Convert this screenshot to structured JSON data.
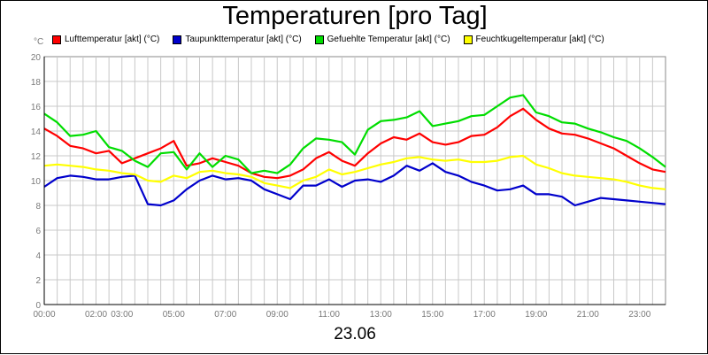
{
  "chart_data": {
    "type": "line",
    "title": "Temperaturen [pro Tag]",
    "y_unit": "°C",
    "xlabel": "23.06",
    "ylim": [
      0,
      20
    ],
    "y_ticks": [
      0,
      2,
      4,
      6,
      8,
      10,
      12,
      14,
      16,
      18,
      20
    ],
    "x_ticks": [
      {
        "t": 0,
        "label": "00:00"
      },
      {
        "t": 2,
        "label": "02:00"
      },
      {
        "t": 3,
        "label": "03:00"
      },
      {
        "t": 5,
        "label": "05:00"
      },
      {
        "t": 7,
        "label": "07:00"
      },
      {
        "t": 9,
        "label": "09:00"
      },
      {
        "t": 11,
        "label": "11:00"
      },
      {
        "t": 13,
        "label": "13:00"
      },
      {
        "t": 15,
        "label": "15:00"
      },
      {
        "t": 17,
        "label": "17:00"
      },
      {
        "t": 19,
        "label": "19:00"
      },
      {
        "t": 21,
        "label": "21:00"
      },
      {
        "t": 23,
        "label": "23:00"
      }
    ],
    "x_range": [
      0,
      24
    ],
    "x_unit": "hour",
    "grid": true,
    "legend_position": "top",
    "x": [
      0,
      0.5,
      1,
      1.5,
      2,
      2.5,
      3,
      3.5,
      4,
      4.5,
      5,
      5.5,
      6,
      6.5,
      7,
      7.5,
      8,
      8.5,
      9,
      9.5,
      10,
      10.5,
      11,
      11.5,
      12,
      12.5,
      13,
      13.5,
      14,
      14.5,
      15,
      15.5,
      16,
      16.5,
      17,
      17.5,
      18,
      18.5,
      19,
      19.5,
      20,
      20.5,
      21,
      21.5,
      22,
      22.5,
      23,
      23.5,
      24
    ],
    "series": [
      {
        "name": "Lufttemperatur [akt] (°C)",
        "color": "#ff0000",
        "values": [
          14.2,
          13.6,
          12.8,
          12.6,
          12.2,
          12.4,
          11.4,
          11.8,
          12.2,
          12.6,
          13.2,
          11.2,
          11.4,
          11.8,
          11.5,
          11.2,
          10.6,
          10.3,
          10.2,
          10.4,
          10.9,
          11.8,
          12.3,
          11.6,
          11.2,
          12.2,
          13.0,
          13.5,
          13.3,
          13.8,
          13.1,
          12.9,
          13.1,
          13.6,
          13.7,
          14.3,
          15.2,
          15.8,
          14.9,
          14.2,
          13.8,
          13.7,
          13.4,
          13.0,
          12.6,
          12.0,
          11.4,
          10.9,
          10.7
        ]
      },
      {
        "name": "Taupunkttemperatur [akt] (°C)",
        "color": "#0000cc",
        "values": [
          9.5,
          10.2,
          10.4,
          10.3,
          10.1,
          10.1,
          10.3,
          10.4,
          8.1,
          8.0,
          8.4,
          9.3,
          10.0,
          10.4,
          10.1,
          10.2,
          10.0,
          9.3,
          8.9,
          8.5,
          9.6,
          9.6,
          10.1,
          9.5,
          10.0,
          10.1,
          9.9,
          10.4,
          11.2,
          10.8,
          11.4,
          10.7,
          10.4,
          9.9,
          9.6,
          9.2,
          9.3,
          9.6,
          8.9,
          8.9,
          8.7,
          8.0,
          8.3,
          8.6,
          8.5,
          8.4,
          8.3,
          8.2,
          8.1
        ]
      },
      {
        "name": "Gefuehlte Temperatur [akt] (°C)",
        "color": "#00dd00",
        "values": [
          15.4,
          14.7,
          13.6,
          13.7,
          14.0,
          12.7,
          12.4,
          11.6,
          11.1,
          12.2,
          12.3,
          10.9,
          12.2,
          11.1,
          12.0,
          11.7,
          10.6,
          10.8,
          10.6,
          11.3,
          12.6,
          13.4,
          13.3,
          13.1,
          12.1,
          14.1,
          14.8,
          14.9,
          15.1,
          15.6,
          14.4,
          14.6,
          14.8,
          15.2,
          15.3,
          16.0,
          16.7,
          16.9,
          15.5,
          15.2,
          14.7,
          14.6,
          14.2,
          13.9,
          13.5,
          13.2,
          12.6,
          11.9,
          11.1
        ]
      },
      {
        "name": "Feuchtkugeltemperatur [akt] (°C)",
        "color": "#ffff00",
        "values": [
          11.2,
          11.3,
          11.2,
          11.1,
          10.9,
          10.8,
          10.6,
          10.5,
          10.0,
          9.9,
          10.4,
          10.2,
          10.7,
          10.8,
          10.6,
          10.5,
          10.3,
          9.8,
          9.6,
          9.4,
          10.0,
          10.3,
          10.9,
          10.5,
          10.7,
          11.0,
          11.3,
          11.5,
          11.8,
          11.9,
          11.7,
          11.6,
          11.7,
          11.5,
          11.5,
          11.6,
          11.9,
          12.0,
          11.3,
          11.0,
          10.6,
          10.4,
          10.3,
          10.2,
          10.1,
          9.9,
          9.6,
          9.4,
          9.3
        ]
      }
    ]
  }
}
